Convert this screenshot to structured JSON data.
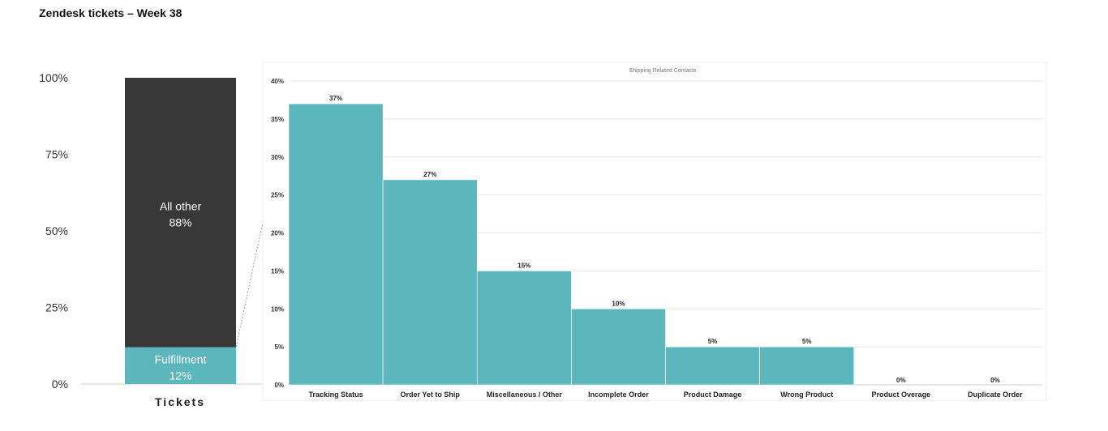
{
  "page": {
    "title": "Zendesk tickets – Week 38"
  },
  "colors": {
    "dark": "#383838",
    "teal": "#5BB7BC",
    "grid": "#e6e6e6"
  },
  "chart_data": [
    {
      "type": "bar",
      "stacked": true,
      "title": "",
      "categories": [
        "Tickets"
      ],
      "series": [
        {
          "name": "Fulfillment",
          "values": [
            12
          ],
          "label": "12%",
          "color": "#5BB7BC"
        },
        {
          "name": "All other",
          "values": [
            88
          ],
          "label": "88%",
          "color": "#383838"
        }
      ],
      "ylim": [
        0,
        100
      ],
      "ytick_labels": [
        "0%",
        "25%",
        "50%",
        "75%",
        "100%"
      ],
      "grid": false,
      "legend": "none"
    },
    {
      "type": "bar",
      "title": "Shipping Related Contacts",
      "categories": [
        "Tracking Status",
        "Order Yet to Ship",
        "Miscellaneous / Other",
        "Incomplete Order",
        "Product Damage",
        "Wrong Product",
        "Product Overage",
        "Duplicate Order"
      ],
      "values": [
        37,
        27,
        15,
        10,
        5,
        5,
        0,
        0
      ],
      "value_labels": [
        "37%",
        "27%",
        "15%",
        "10%",
        "5%",
        "5%",
        "0%",
        "0%"
      ],
      "ylim": [
        0,
        40
      ],
      "ytick_labels": [
        "0%",
        "5%",
        "10%",
        "15%",
        "20%",
        "25%",
        "30%",
        "35%",
        "40%"
      ],
      "grid": true,
      "legend": "none"
    }
  ]
}
